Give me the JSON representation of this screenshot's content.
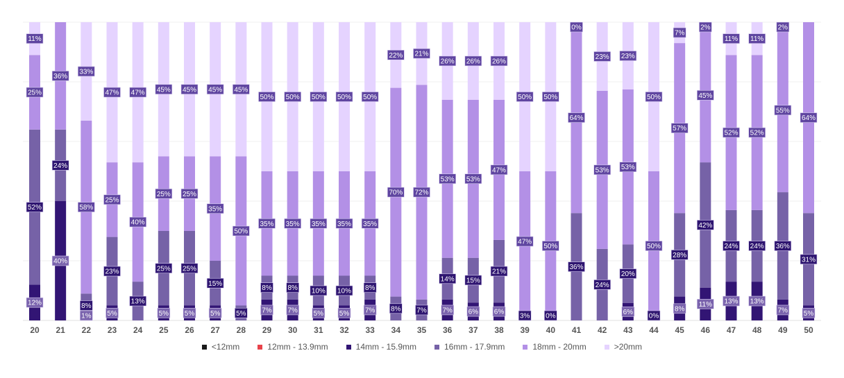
{
  "chart_data": {
    "type": "bar",
    "stacked": true,
    "normalized": true,
    "title": "",
    "xlabel": "",
    "ylabel": "",
    "ylim": [
      0,
      100
    ],
    "grid": true,
    "legend_position": "bottom",
    "categories": [
      "20",
      "21",
      "22",
      "23",
      "24",
      "25",
      "26",
      "27",
      "28",
      "29",
      "30",
      "31",
      "32",
      "33",
      "34",
      "35",
      "36",
      "37",
      "38",
      "39",
      "40",
      "41",
      "42",
      "43",
      "44",
      "45",
      "46",
      "47",
      "48",
      "49",
      "50"
    ],
    "series": [
      {
        "name": "<12mm",
        "color": "#1a1a1a",
        "label_color": "#1a1a1a",
        "values": [
          null,
          null,
          null,
          null,
          null,
          null,
          null,
          null,
          null,
          null,
          null,
          null,
          null,
          null,
          null,
          null,
          null,
          null,
          null,
          null,
          null,
          null,
          null,
          null,
          null,
          null,
          null,
          null,
          null,
          null,
          null
        ]
      },
      {
        "name": "12mm - 13.9mm",
        "color": "#e8434b",
        "label_color": "#e8434b",
        "values": [
          null,
          null,
          null,
          null,
          null,
          null,
          null,
          null,
          null,
          null,
          null,
          null,
          null,
          null,
          null,
          null,
          null,
          null,
          null,
          null,
          null,
          null,
          null,
          null,
          null,
          null,
          null,
          null,
          null,
          null,
          null
        ]
      },
      {
        "name": "14mm - 15.9mm",
        "color": "#321574",
        "label_color": "#7a63ad",
        "values": [
          12,
          40,
          1,
          5,
          null,
          5,
          5,
          5,
          null,
          7,
          7,
          5,
          5,
          7,
          null,
          null,
          7,
          6,
          6,
          null,
          null,
          null,
          null,
          6,
          null,
          8,
          11,
          13,
          13,
          7,
          5
        ]
      },
      {
        "name": "16mm - 17.9mm",
        "color": "#7662a7",
        "label_color": "#2e1570",
        "values": [
          52,
          24,
          8,
          23,
          13,
          25,
          25,
          15,
          5,
          8,
          8,
          10,
          10,
          8,
          8,
          7,
          14,
          15,
          21,
          3,
          0,
          36,
          24,
          20,
          0,
          28,
          42,
          24,
          24,
          36,
          31
        ]
      },
      {
        "name": "18mm - 20mm",
        "color": "#b390e6",
        "label_color": "#5f45a0",
        "values": [
          25,
          36,
          58,
          25,
          40,
          25,
          25,
          35,
          50,
          35,
          35,
          35,
          35,
          35,
          70,
          72,
          53,
          53,
          47,
          47,
          50,
          64,
          53,
          53,
          50,
          57,
          45,
          52,
          52,
          55,
          64
        ]
      },
      {
        "name": ">20mm",
        "color": "#e5d3ff",
        "label_color": "#5f45a0",
        "values": [
          11,
          null,
          33,
          47,
          47,
          45,
          45,
          45,
          45,
          50,
          50,
          50,
          50,
          50,
          22,
          21,
          26,
          26,
          26,
          50,
          50,
          0,
          23,
          23,
          50,
          7,
          2,
          11,
          11,
          2,
          null
        ]
      }
    ]
  }
}
